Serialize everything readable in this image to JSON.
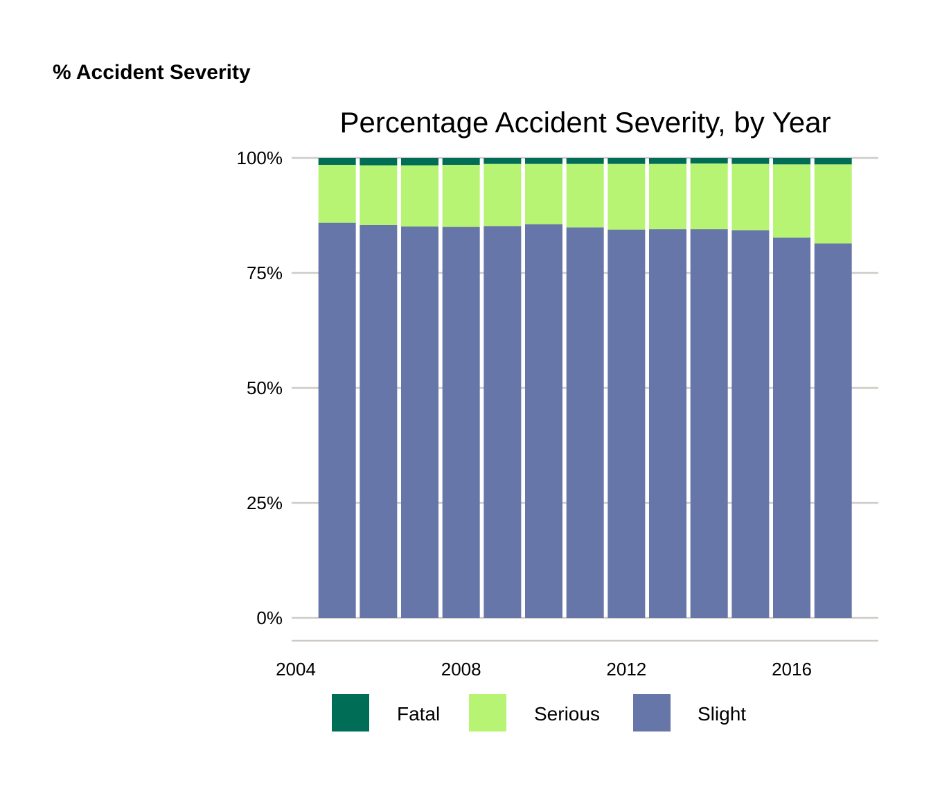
{
  "page_heading": "% Accident Severity",
  "chart_data": {
    "type": "bar",
    "stacked": true,
    "percent": true,
    "title": "Percentage Accident Severity, by Year",
    "xlabel": "",
    "ylabel": "",
    "categories": [
      2005,
      2006,
      2007,
      2008,
      2009,
      2010,
      2011,
      2012,
      2013,
      2014,
      2015,
      2016,
      2017
    ],
    "x_ticks": [
      2004,
      2008,
      2012,
      2016
    ],
    "xlim": [
      2004,
      2018
    ],
    "y_ticks": [
      "0%",
      "25%",
      "50%",
      "75%",
      "100%"
    ],
    "ylim": [
      0,
      100
    ],
    "grid": "horizontal",
    "legend_position": "bottom",
    "series": [
      {
        "name": "Fatal",
        "color": "#006d56",
        "values": [
          1.5,
          1.6,
          1.6,
          1.5,
          1.3,
          1.3,
          1.3,
          1.3,
          1.3,
          1.2,
          1.3,
          1.4,
          1.4
        ]
      },
      {
        "name": "Serious",
        "color": "#b7f473",
        "values": [
          12.6,
          13.0,
          13.3,
          13.5,
          13.5,
          13.1,
          13.8,
          14.3,
          14.2,
          14.3,
          14.4,
          15.9,
          17.2
        ]
      },
      {
        "name": "Slight",
        "color": "#6776a9",
        "values": [
          85.9,
          85.4,
          85.1,
          85.0,
          85.2,
          85.6,
          84.9,
          84.4,
          84.5,
          84.5,
          84.3,
          82.7,
          81.4
        ]
      }
    ]
  }
}
